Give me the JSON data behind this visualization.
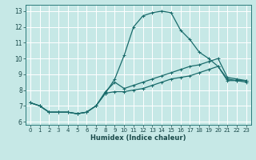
{
  "xlabel": "Humidex (Indice chaleur)",
  "xlim": [
    -0.5,
    23.5
  ],
  "ylim": [
    5.8,
    13.4
  ],
  "xticks": [
    0,
    1,
    2,
    3,
    4,
    5,
    6,
    7,
    8,
    9,
    10,
    11,
    12,
    13,
    14,
    15,
    16,
    17,
    18,
    19,
    20,
    21,
    22,
    23
  ],
  "yticks": [
    6,
    7,
    8,
    9,
    10,
    11,
    12,
    13
  ],
  "background_color": "#c6e8e6",
  "grid_color": "#e0f0f0",
  "line_color": "#1a6b6b",
  "line1_y": [
    7.2,
    7.0,
    6.6,
    6.6,
    6.6,
    6.5,
    6.6,
    7.0,
    7.8,
    8.7,
    10.2,
    12.0,
    12.7,
    12.9,
    13.0,
    12.9,
    11.8,
    11.2,
    10.4,
    10.0,
    9.5,
    8.6,
    8.6,
    8.6
  ],
  "line2_y": [
    7.2,
    7.0,
    6.6,
    6.6,
    6.6,
    6.5,
    6.6,
    7.0,
    7.9,
    8.5,
    8.1,
    8.3,
    8.5,
    8.7,
    8.9,
    9.1,
    9.3,
    9.5,
    9.6,
    9.8,
    10.0,
    8.8,
    8.7,
    8.6
  ],
  "line3_y": [
    7.2,
    7.0,
    6.6,
    6.6,
    6.6,
    6.5,
    6.6,
    7.0,
    7.8,
    7.9,
    7.9,
    8.0,
    8.1,
    8.3,
    8.5,
    8.7,
    8.8,
    8.9,
    9.1,
    9.3,
    9.5,
    8.7,
    8.6,
    8.5
  ],
  "tick_fontsize": 5.0,
  "xlabel_fontsize": 6.0
}
